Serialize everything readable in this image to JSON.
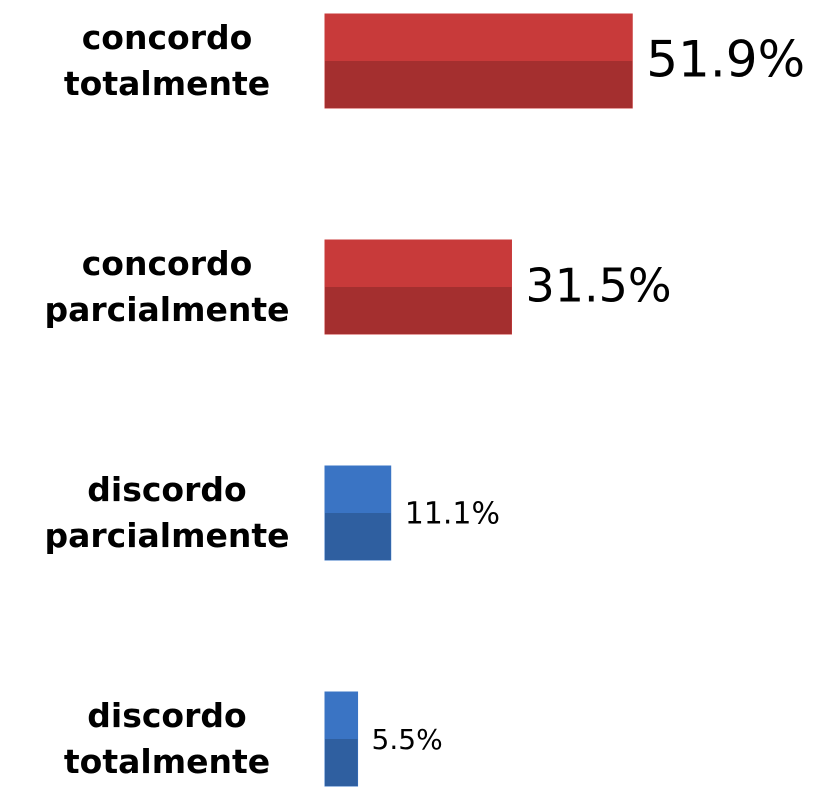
{
  "chart_data": {
    "type": "bar",
    "orientation": "horizontal",
    "categories": [
      "concordo totalmente",
      "concordo parcialmente",
      "discordo parcialmente",
      "discordo totalmente"
    ],
    "values": [
      51.9,
      31.5,
      11.1,
      5.5
    ],
    "value_labels": [
      "51.9%",
      "31.5%",
      "11.1%",
      "5.5%"
    ],
    "colors": [
      "#c83a3a",
      "#c83a3a",
      "#3a74c4",
      "#3a74c4"
    ]
  }
}
